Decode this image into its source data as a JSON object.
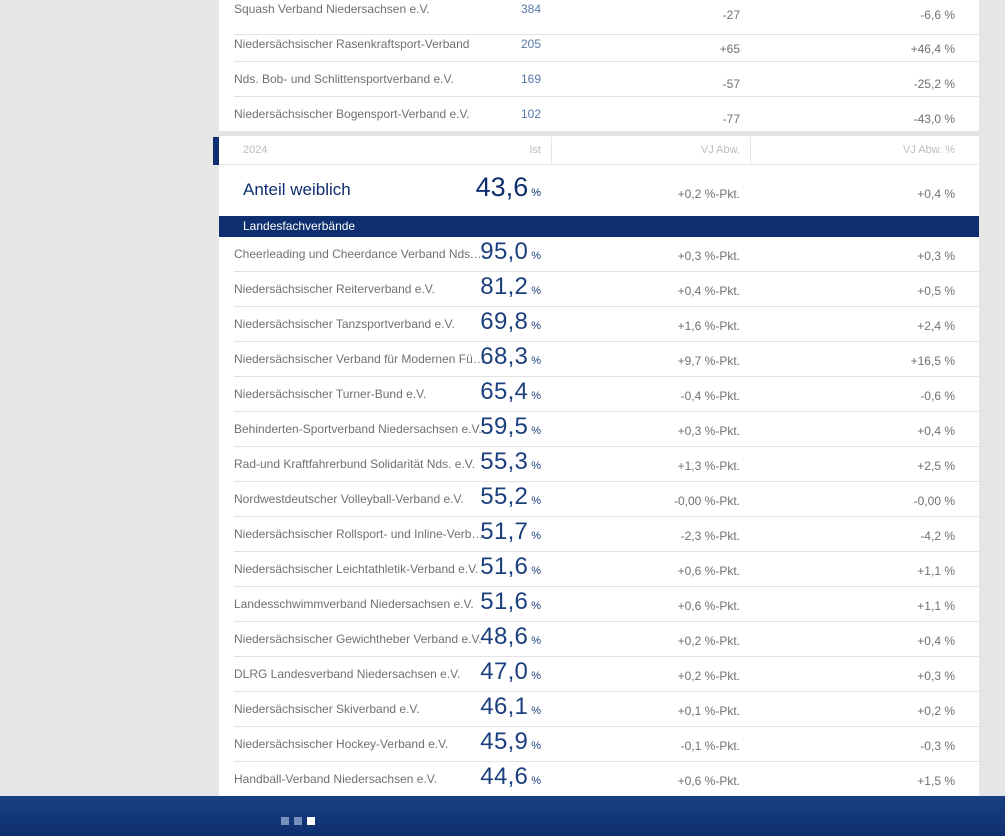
{
  "top_rows": [
    {
      "name": "Squash Verband Niedersachsen e.V.",
      "count": "384",
      "vj": "-27",
      "vjp": "-6,6 %"
    },
    {
      "name": "Niedersächsischer Rasenkraftsport-Verband",
      "count": "205",
      "vj": "+65",
      "vjp": "+46,4 %"
    },
    {
      "name": "Nds. Bob- und Schlittensportverband e.V.",
      "count": "169",
      "vj": "-57",
      "vjp": "-25,2 %"
    },
    {
      "name": "Niedersächsischer Bogensport-Verband e.V.",
      "count": "102",
      "vj": "-77",
      "vjp": "-43,0 %"
    }
  ],
  "table_header": {
    "year": "2024",
    "ist": "Ist",
    "vj": "VJ Abw.",
    "vjp": "VJ Abw. %"
  },
  "summary": {
    "label": "Anteil weiblich",
    "value": "43,6",
    "unit": "%",
    "vj": "+0,2 %-Pkt.",
    "vjp": "+0,4 %"
  },
  "section_title": "Landesfachverbände",
  "rows": [
    {
      "name": "Cheerleading und Cheerdance Verband Nds. e.V.",
      "value": "95,0",
      "unit": "%",
      "vj": "+0,3 %-Pkt.",
      "vjp": "+0,3 %"
    },
    {
      "name": "Niedersächsischer Reiterverband e.V.",
      "value": "81,2",
      "unit": "%",
      "vj": "+0,4 %-Pkt.",
      "vjp": "+0,5 %"
    },
    {
      "name": "Niedersächsischer Tanzsportverband e.V.",
      "value": "69,8",
      "unit": "%",
      "vj": "+1,6 %-Pkt.",
      "vjp": "+2,4 %"
    },
    {
      "name": "Niedersächsischer Verband für Modernen Fünfkampf e.V.",
      "value": "68,3",
      "unit": "%",
      "vj": "+9,7 %-Pkt.",
      "vjp": "+16,5 %"
    },
    {
      "name": "Niedersächsischer Turner-Bund e.V.",
      "value": "65,4",
      "unit": "%",
      "vj": "-0,4 %-Pkt.",
      "vjp": "-0,6 %"
    },
    {
      "name": "Behinderten-Sportverband Niedersachsen e.V.",
      "value": "59,5",
      "unit": "%",
      "vj": "+0,3 %-Pkt.",
      "vjp": "+0,4 %"
    },
    {
      "name": "Rad-und Kraftfahrerbund Solidarität Nds. e.V.",
      "value": "55,3",
      "unit": "%",
      "vj": "+1,3 %-Pkt.",
      "vjp": "+2,5 %"
    },
    {
      "name": "Nordwestdeutscher Volleyball-Verband e.V.",
      "value": "55,2",
      "unit": "%",
      "vj": "-0,00 %-Pkt.",
      "vjp": "-0,00 %"
    },
    {
      "name": "Niedersächsischer Rollsport- und Inline-Verband e.V.",
      "value": "51,7",
      "unit": "%",
      "vj": "-2,3 %-Pkt.",
      "vjp": "-4,2 %"
    },
    {
      "name": "Niedersächsischer Leichtathletik-Verband e.V.",
      "value": "51,6",
      "unit": "%",
      "vj": "+0,6 %-Pkt.",
      "vjp": "+1,1 %"
    },
    {
      "name": "Landesschwimmverband Niedersachsen e.V.",
      "value": "51,6",
      "unit": "%",
      "vj": "+0,6 %-Pkt.",
      "vjp": "+1,1 %"
    },
    {
      "name": "Niedersächsischer Gewichtheber Verband e.V.",
      "value": "48,6",
      "unit": "%",
      "vj": "+0,2 %-Pkt.",
      "vjp": "+0,4 %"
    },
    {
      "name": "DLRG Landesverband Niedersachsen e.V.",
      "value": "47,0",
      "unit": "%",
      "vj": "+0,2 %-Pkt.",
      "vjp": "+0,3 %"
    },
    {
      "name": "Niedersächsischer Skiverband e.V.",
      "value": "46,1",
      "unit": "%",
      "vj": "+0,1 %-Pkt.",
      "vjp": "+0,2 %"
    },
    {
      "name": "Niedersächsischer Hockey-Verband e.V.",
      "value": "45,9",
      "unit": "%",
      "vj": "-0,1 %-Pkt.",
      "vjp": "-0,3 %"
    },
    {
      "name": "Handball-Verband Niedersachsen e.V.",
      "value": "44,6",
      "unit": "%",
      "vj": "+0,6 %-Pkt.",
      "vjp": "+1,5 %"
    }
  ],
  "pagination": {
    "count": 3,
    "active_index": 2
  },
  "colors": {
    "accent": "#0e2f6f",
    "count_blue": "#5577aa",
    "footer": "#1a3f82",
    "background": "#e6e6e6"
  }
}
